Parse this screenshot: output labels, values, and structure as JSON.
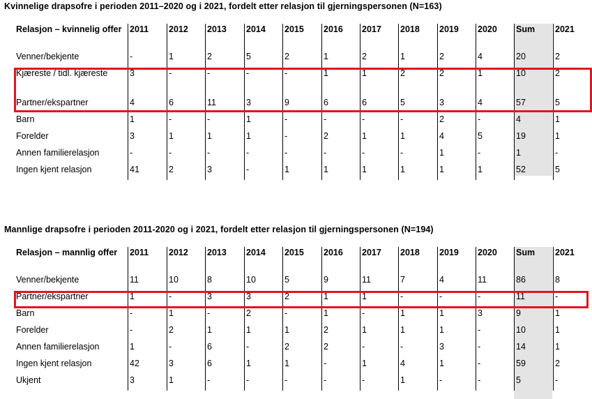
{
  "tables": [
    {
      "title": "Kvinnelige drapsofre i perioden 2011–2020 og i 2021, fordelt etter relasjon til gjerningspersonen (N=163)",
      "corner_header": "Relasjon – kvinnelig offer",
      "columns": [
        "2011",
        "2012",
        "2013",
        "2014",
        "2015",
        "2016",
        "2017",
        "2018",
        "2019",
        "2020",
        "Sum",
        "2021"
      ],
      "rows": [
        {
          "label": "Venner/bekjente",
          "values": [
            "-",
            "1",
            "2",
            "5",
            "2",
            "1",
            "2",
            "1",
            "2",
            "4",
            "20",
            "2"
          ]
        },
        {
          "label": "Kjæreste / tidl. kjæreste",
          "values": [
            "3",
            "-",
            "-",
            "-",
            "-",
            "1",
            "1",
            "2",
            "2",
            "1",
            "10",
            "2"
          ]
        },
        {
          "label": "Partner/ekspartner",
          "values": [
            "4",
            "6",
            "11",
            "3",
            "9",
            "6",
            "6",
            "5",
            "3",
            "4",
            "57",
            "5"
          ]
        },
        {
          "label": "Barn",
          "values": [
            "1",
            "-",
            "-",
            "1",
            "-",
            "-",
            "-",
            "-",
            "2",
            "-",
            "4",
            "1"
          ]
        },
        {
          "label": "Forelder",
          "values": [
            "3",
            "1",
            "1",
            "1",
            "-",
            "2",
            "1",
            "1",
            "4",
            "5",
            "19",
            "1"
          ]
        },
        {
          "label": "Annen familierelasjon",
          "values": [
            "-",
            "-",
            "-",
            "-",
            "-",
            "-",
            "-",
            "-",
            "1",
            "-",
            "1",
            "-"
          ]
        },
        {
          "label": "Ingen kjent relasjon",
          "values": [
            "41",
            "2",
            "3",
            "-",
            "1",
            "1",
            "1",
            "1",
            "1",
            "1",
            "52",
            "5"
          ]
        }
      ]
    },
    {
      "title": "Mannlige drapsofre i perioden 2011-2020 og i 2021, fordelt etter relasjon til gjerningspersonen (N=194)",
      "corner_header": "Relasjon – mannlig offer",
      "columns": [
        "2011",
        "2012",
        "2013",
        "2014",
        "2015",
        "2016",
        "2017",
        "2018",
        "2019",
        "2020",
        "Sum",
        "2021"
      ],
      "rows": [
        {
          "label": "Venner/bekjente",
          "values": [
            "11",
            "10",
            "8",
            "10",
            "5",
            "9",
            "11",
            "7",
            "4",
            "11",
            "86",
            "8"
          ]
        },
        {
          "label": "Partner/ekspartner",
          "values": [
            "1",
            "-",
            "3",
            "3",
            "2",
            "1",
            "1",
            "-",
            "-",
            "-",
            "11",
            "-"
          ]
        },
        {
          "label": "Barn",
          "values": [
            "-",
            "1",
            "-",
            "2",
            "-",
            "1",
            "-",
            "1",
            "1",
            "3",
            "9",
            "1"
          ]
        },
        {
          "label": "Forelder",
          "values": [
            "-",
            "2",
            "1",
            "1",
            "1",
            "2",
            "1",
            "1",
            "1",
            "-",
            "10",
            "1"
          ]
        },
        {
          "label": "Annen familierelasjon",
          "values": [
            "1",
            "-",
            "6",
            "-",
            "2",
            "2",
            "-",
            "-",
            "3",
            "-",
            "14",
            "1"
          ]
        },
        {
          "label": "Ingen kjent relasjon",
          "values": [
            "42",
            "3",
            "6",
            "1",
            "1",
            "-",
            "1",
            "4",
            "1",
            "-",
            "59",
            "2"
          ]
        },
        {
          "label": "Ukjent",
          "values": [
            "3",
            "1",
            "-",
            "-",
            "-",
            "-",
            "-",
            "1",
            "-",
            "-",
            "5",
            "-"
          ]
        }
      ]
    }
  ],
  "colors": {
    "highlight": "#e0161f",
    "sum_column": "#e4e4e4"
  }
}
